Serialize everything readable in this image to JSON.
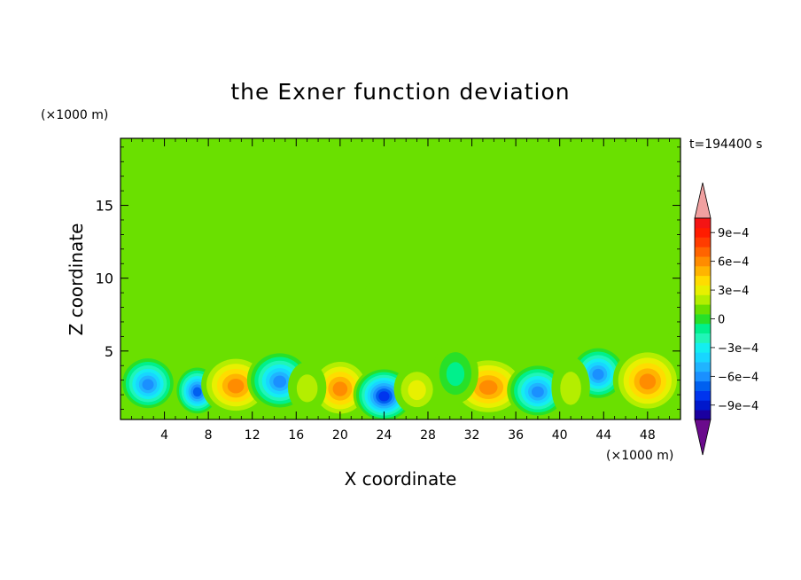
{
  "chart_data": {
    "type": "heatmap",
    "title": "the Exner function deviation",
    "xlabel": "X coordinate",
    "ylabel": "Z coordinate",
    "x_unit": "(×1000 m)",
    "y_unit": "(×1000 m)",
    "time_label": "t=194400 s",
    "xlim": [
      0,
      51
    ],
    "ylim": [
      0.3,
      19.6
    ],
    "x_ticks": [
      4,
      8,
      12,
      16,
      20,
      24,
      28,
      32,
      36,
      40,
      44,
      48
    ],
    "y_ticks": [
      5,
      10,
      15
    ],
    "x_tick_labels": [
      "4",
      "8",
      "12",
      "16",
      "20",
      "24",
      "28",
      "32",
      "36",
      "40",
      "44",
      "48"
    ],
    "y_tick_labels": [
      "5",
      "10",
      "15"
    ],
    "colorbar": {
      "levels": [
        -0.0011,
        -0.001,
        -0.0009,
        -0.0008,
        -0.0007,
        -0.0006,
        -0.0005,
        -0.0004,
        -0.0003,
        -0.0002,
        -0.0001,
        0,
        0.0001,
        0.0002,
        0.0003,
        0.0004,
        0.0005,
        0.0006,
        0.0007,
        0.0008,
        0.0009,
        0.001,
        0.0011
      ],
      "colors": [
        "#6a0a8c",
        "#1a00a0",
        "#0018cc",
        "#0035ee",
        "#0060f0",
        "#1a90ff",
        "#20b4ff",
        "#18d6ff",
        "#14eef0",
        "#20f5b8",
        "#00f08c",
        "#28e028",
        "#6ae000",
        "#b4ee00",
        "#e8f000",
        "#ffdc00",
        "#ffb400",
        "#ff8c00",
        "#ff6400",
        "#ff3c00",
        "#ff1c00",
        "#f41414",
        "#f0a0a0"
      ],
      "labels": [
        "9e−4",
        "6e−4",
        "3e−4",
        "0",
        "−3e−4",
        "−6e−4",
        "−9e−4"
      ],
      "label_values": [
        0.0009,
        0.0006,
        0.0003,
        0,
        -0.0003,
        -0.0006,
        -0.0009
      ]
    },
    "cells": [
      {
        "x": 2.5,
        "z": 2.8,
        "sx": 1.5,
        "sz": 1.1,
        "amp": -0.0006
      },
      {
        "x": 7.0,
        "z": 2.3,
        "sx": 1.2,
        "sz": 1.0,
        "amp": -0.00065
      },
      {
        "x": 10.5,
        "z": 2.7,
        "sx": 1.8,
        "sz": 1.2,
        "amp": 0.0006
      },
      {
        "x": 14.5,
        "z": 3.0,
        "sx": 1.7,
        "sz": 1.2,
        "amp": -0.0006
      },
      {
        "x": 20.0,
        "z": 2.5,
        "sx": 1.6,
        "sz": 1.2,
        "amp": 0.0006
      },
      {
        "x": 24.0,
        "z": 2.0,
        "sx": 1.6,
        "sz": 1.1,
        "amp": -0.00075
      },
      {
        "x": 27.0,
        "z": 2.4,
        "sx": 1.2,
        "sz": 1.0,
        "amp": 0.0003
      },
      {
        "x": 33.5,
        "z": 2.6,
        "sx": 2.0,
        "sz": 1.2,
        "amp": 0.0006
      },
      {
        "x": 38.0,
        "z": 2.3,
        "sx": 1.6,
        "sz": 1.1,
        "amp": -0.0006
      },
      {
        "x": 43.5,
        "z": 3.5,
        "sx": 1.5,
        "sz": 1.1,
        "amp": -0.0006
      },
      {
        "x": 48.0,
        "z": 3.0,
        "sx": 1.8,
        "sz": 1.3,
        "amp": 0.00065
      },
      {
        "x": 17.0,
        "z": 2.5,
        "sx": 1.0,
        "sz": 1.0,
        "amp": 0.0002
      },
      {
        "x": 30.5,
        "z": 3.5,
        "sx": 1.2,
        "sz": 1.2,
        "amp": -0.00015
      },
      {
        "x": 41.0,
        "z": 2.5,
        "sx": 1.0,
        "sz": 1.2,
        "amp": 0.0002
      }
    ],
    "upper_bands": [
      {
        "x0": 3,
        "x1": 20,
        "z": 17.5,
        "sz": 1.5,
        "amp": 0.00014
      },
      {
        "x0": 27,
        "x1": 50,
        "z": 14.5,
        "sz": 1.2,
        "amp": 0.00013
      },
      {
        "x0": 14,
        "x1": 22,
        "z": 11.8,
        "sz": 1.0,
        "amp": 0.00012
      },
      {
        "x0": 0,
        "x1": 12,
        "z": 9.5,
        "sz": 1.1,
        "amp": 0.00012
      },
      {
        "x0": 22,
        "x1": 36,
        "z": 8.5,
        "sz": 1.5,
        "amp": 0.00013
      },
      {
        "x0": 36,
        "x1": 50,
        "z": 10.0,
        "sz": 1.5,
        "amp": 0.00012
      },
      {
        "x0": 0,
        "x1": 50,
        "z": 6.5,
        "sz": 0.9,
        "amp": 0.00011
      }
    ]
  }
}
